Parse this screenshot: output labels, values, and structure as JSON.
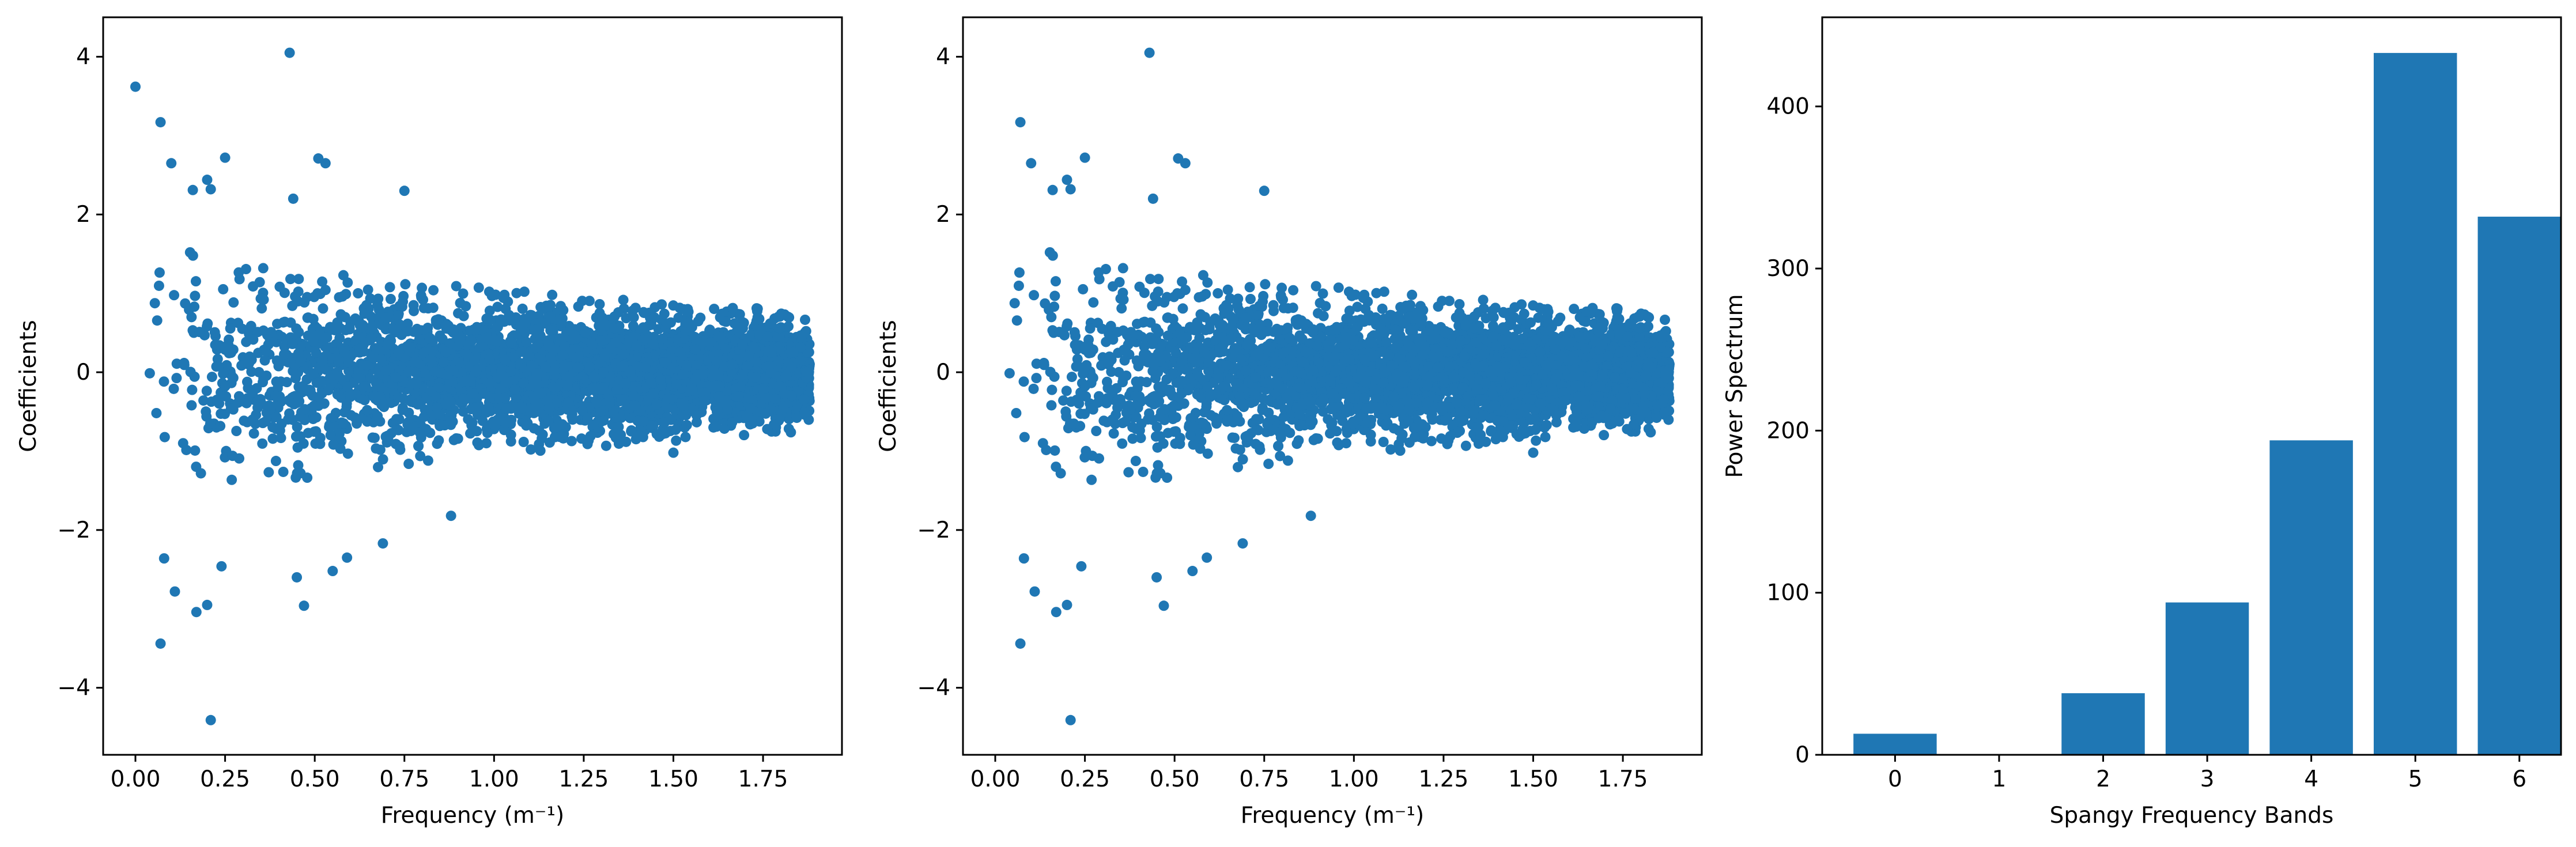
{
  "colors": {
    "series": "#1f77b4",
    "axes": "#000000",
    "background": "#ffffff"
  },
  "chart_data": [
    {
      "type": "scatter",
      "title": "",
      "xlabel": "Frequency (m⁻¹)",
      "ylabel": "Coefficients",
      "xlim": [
        -0.09,
        1.97
      ],
      "ylim": [
        -4.85,
        4.5
      ],
      "xticks": [
        0.0,
        0.25,
        0.5,
        0.75,
        1.0,
        1.25,
        1.5,
        1.75
      ],
      "xtick_labels": [
        "0.00",
        "0.25",
        "0.50",
        "0.75",
        "1.00",
        "1.25",
        "1.50",
        "1.75"
      ],
      "yticks": [
        -4,
        -2,
        0,
        2,
        4
      ],
      "ytick_labels": [
        "−4",
        "−2",
        "0",
        "2",
        "4"
      ],
      "grid": false,
      "x_max_data": 1.88,
      "distribution": "dense cloud of ~4000 points centred on 0; spread decreasing with frequency from about ±1.6 at low frequency to about ±0.6 near 1.88",
      "highlighted_points": [
        {
          "x": 0.0,
          "y": 3.62
        },
        {
          "x": 0.07,
          "y": 3.17
        },
        {
          "x": 0.1,
          "y": 2.65
        },
        {
          "x": 0.43,
          "y": 4.05
        },
        {
          "x": 0.25,
          "y": 2.72
        },
        {
          "x": 0.2,
          "y": 2.44
        },
        {
          "x": 0.21,
          "y": 2.32
        },
        {
          "x": 0.16,
          "y": 2.31
        },
        {
          "x": 0.51,
          "y": 2.71
        },
        {
          "x": 0.53,
          "y": 2.65
        },
        {
          "x": 0.44,
          "y": 2.2
        },
        {
          "x": 0.75,
          "y": 2.3
        },
        {
          "x": 0.08,
          "y": -2.36
        },
        {
          "x": 0.11,
          "y": -2.78
        },
        {
          "x": 0.17,
          "y": -3.04
        },
        {
          "x": 0.2,
          "y": -2.95
        },
        {
          "x": 0.07,
          "y": -3.44
        },
        {
          "x": 0.21,
          "y": -4.41
        },
        {
          "x": 0.47,
          "y": -2.96
        },
        {
          "x": 0.45,
          "y": -2.6
        },
        {
          "x": 0.24,
          "y": -2.46
        },
        {
          "x": 0.55,
          "y": -2.52
        },
        {
          "x": 0.88,
          "y": -1.82
        },
        {
          "x": 0.69,
          "y": -2.17
        },
        {
          "x": 0.59,
          "y": -2.35
        },
        {
          "x": 1.5,
          "y": -1.02
        }
      ]
    },
    {
      "type": "scatter",
      "title": "",
      "xlabel": "Frequency (m⁻¹)",
      "ylabel": "Coefficients",
      "xlim": [
        -0.09,
        1.97
      ],
      "ylim": [
        -4.85,
        4.5
      ],
      "xticks": [
        0.0,
        0.25,
        0.5,
        0.75,
        1.0,
        1.25,
        1.5,
        1.75
      ],
      "xtick_labels": [
        "0.00",
        "0.25",
        "0.50",
        "0.75",
        "1.00",
        "1.25",
        "1.50",
        "1.75"
      ],
      "yticks": [
        -4,
        -2,
        0,
        2,
        4
      ],
      "ytick_labels": [
        "−4",
        "−2",
        "0",
        "2",
        "4"
      ],
      "grid": false,
      "x_max_data": 1.88,
      "distribution": "same cloud as left panel without the point at frequency 0",
      "highlighted_points": [
        {
          "x": 0.07,
          "y": 3.17
        },
        {
          "x": 0.1,
          "y": 2.65
        },
        {
          "x": 0.43,
          "y": 4.05
        },
        {
          "x": 0.25,
          "y": 2.72
        },
        {
          "x": 0.2,
          "y": 2.44
        },
        {
          "x": 0.21,
          "y": 2.32
        },
        {
          "x": 0.16,
          "y": 2.31
        },
        {
          "x": 0.51,
          "y": 2.71
        },
        {
          "x": 0.53,
          "y": 2.65
        },
        {
          "x": 0.44,
          "y": 2.2
        },
        {
          "x": 0.75,
          "y": 2.3
        },
        {
          "x": 0.08,
          "y": -2.36
        },
        {
          "x": 0.11,
          "y": -2.78
        },
        {
          "x": 0.17,
          "y": -3.04
        },
        {
          "x": 0.2,
          "y": -2.95
        },
        {
          "x": 0.07,
          "y": -3.44
        },
        {
          "x": 0.21,
          "y": -4.41
        },
        {
          "x": 0.47,
          "y": -2.96
        },
        {
          "x": 0.45,
          "y": -2.6
        },
        {
          "x": 0.24,
          "y": -2.46
        },
        {
          "x": 0.55,
          "y": -2.52
        },
        {
          "x": 0.88,
          "y": -1.82
        },
        {
          "x": 0.69,
          "y": -2.17
        },
        {
          "x": 0.59,
          "y": -2.35
        },
        {
          "x": 1.5,
          "y": -1.02
        }
      ]
    },
    {
      "type": "bar",
      "title": "",
      "xlabel": "Spangy Frequency Bands",
      "ylabel": "Power Spectrum",
      "categories": [
        "0",
        "1",
        "2",
        "3",
        "4",
        "5",
        "6"
      ],
      "values": [
        13,
        0,
        38,
        94,
        194,
        433,
        332
      ],
      "xlim": [
        -0.7,
        6.4
      ],
      "ylim": [
        0,
        455
      ],
      "yticks": [
        0,
        100,
        200,
        300,
        400
      ],
      "ytick_labels": [
        "0",
        "100",
        "200",
        "300",
        "400"
      ],
      "grid": false
    }
  ]
}
